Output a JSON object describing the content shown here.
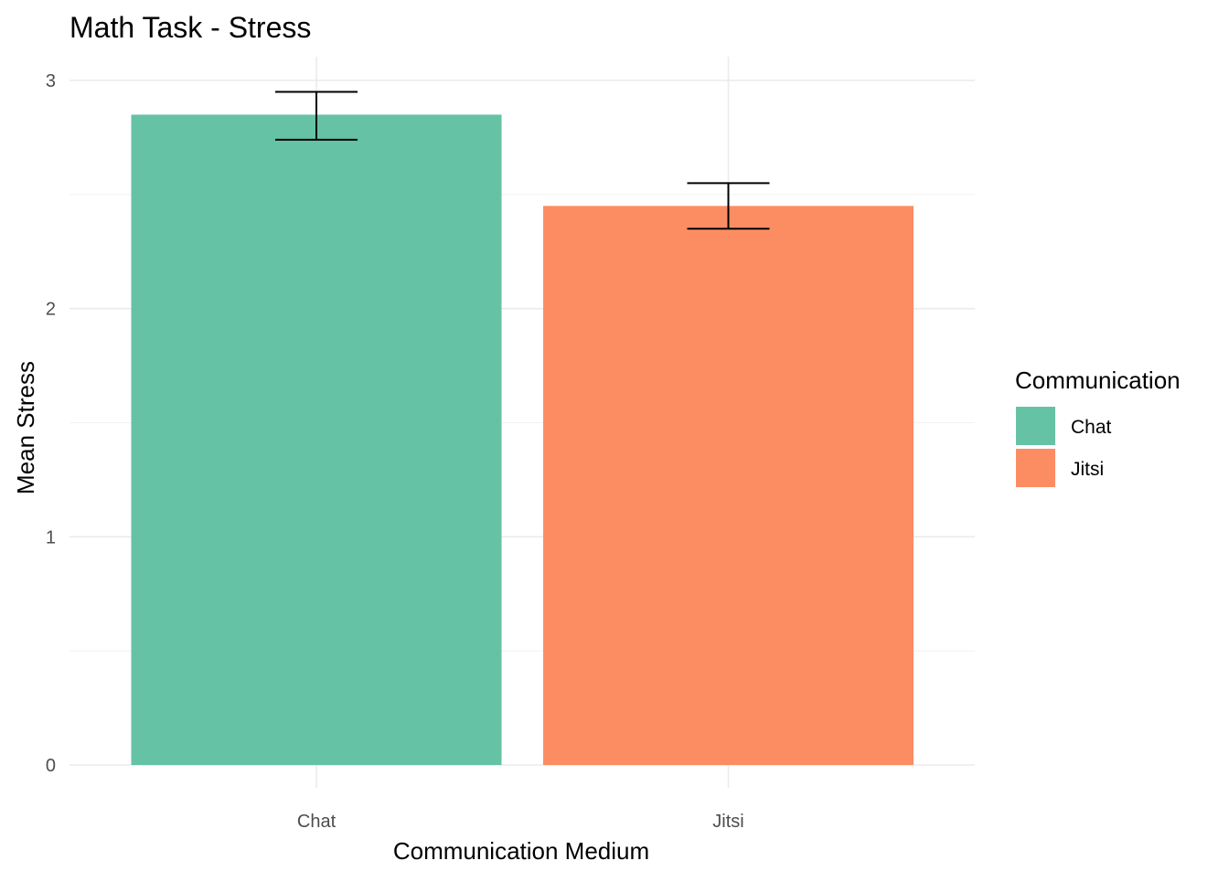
{
  "chart_data": {
    "type": "bar",
    "title": "Math Task - Stress",
    "xlabel": "Communication Medium",
    "ylabel": "Mean Stress",
    "categories": [
      "Chat",
      "Jitsi"
    ],
    "values": [
      2.85,
      2.45
    ],
    "error_bars": [
      {
        "low": 2.74,
        "high": 2.95
      },
      {
        "low": 2.35,
        "high": 2.55
      }
    ],
    "colors": [
      "#66c2a5",
      "#fc8d62"
    ],
    "ylim": [
      0,
      3
    ],
    "yticks": [
      0,
      1,
      2,
      3
    ],
    "grid": true,
    "legend": {
      "title": "Communication",
      "position": "right",
      "entries": [
        "Chat",
        "Jitsi"
      ]
    }
  }
}
